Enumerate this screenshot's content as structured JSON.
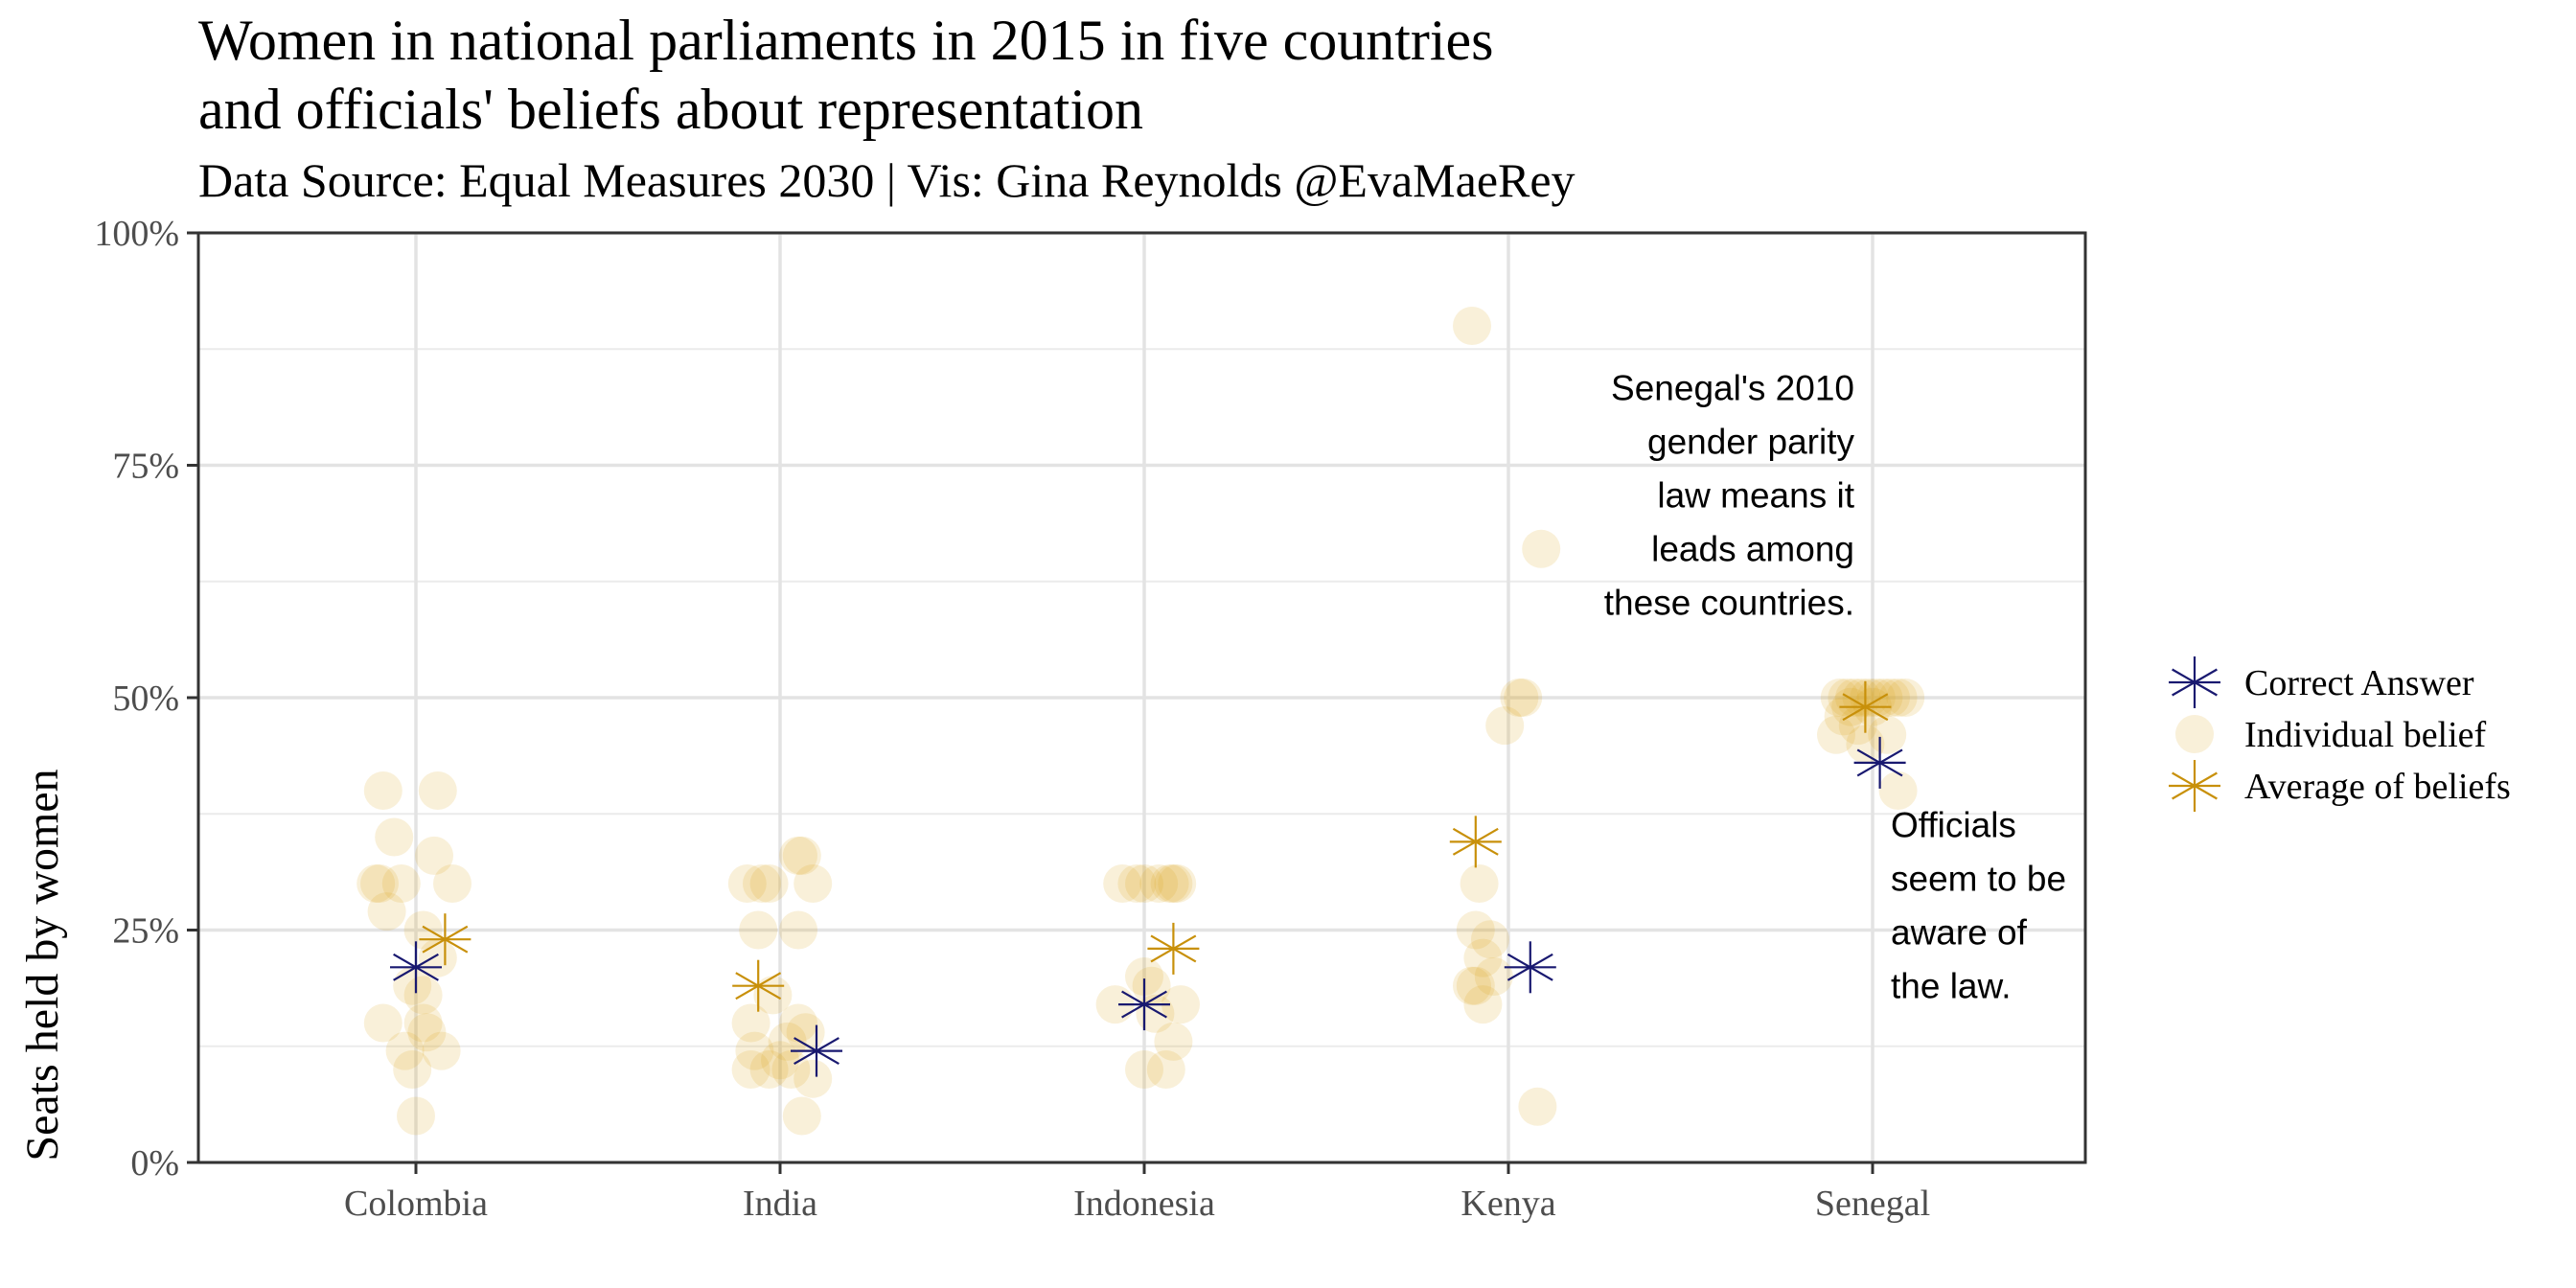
{
  "chart_data": {
    "type": "scatter",
    "title_lines": [
      "Women in national parliaments in 2015 in five countries",
      "and officials' beliefs about representation"
    ],
    "subtitle": "Data Source: Equal Measures 2030 | Vis: Gina Reynolds @EvaMaeRey",
    "ylabel": "Seats held by women",
    "xlabel": "",
    "ylim": [
      0,
      1
    ],
    "y_ticks": [
      {
        "value": 0,
        "label": "0%"
      },
      {
        "value": 0.25,
        "label": "25%"
      },
      {
        "value": 0.5,
        "label": "50%"
      },
      {
        "value": 0.75,
        "label": "75%"
      },
      {
        "value": 1,
        "label": "100%"
      }
    ],
    "grid": true,
    "legend_position": "right",
    "categories": [
      "Colombia",
      "India",
      "Indonesia",
      "Kenya",
      "Senegal"
    ],
    "legend": [
      {
        "key": "correct",
        "label": "Correct Answer",
        "color": "#191970"
      },
      {
        "key": "individual",
        "label": "Individual belief",
        "color": "#DAA520"
      },
      {
        "key": "average",
        "label": "Average of beliefs",
        "color": "#C8900A"
      }
    ],
    "correct_answers": [
      {
        "category": "Colombia",
        "value": 0.21,
        "jitter": 0.0
      },
      {
        "category": "India",
        "value": 0.12,
        "jitter": 0.1
      },
      {
        "category": "Indonesia",
        "value": 0.17,
        "jitter": 0.0
      },
      {
        "category": "Kenya",
        "value": 0.21,
        "jitter": 0.06
      },
      {
        "category": "Senegal",
        "value": 0.43,
        "jitter": 0.02
      }
    ],
    "average_beliefs": [
      {
        "category": "Colombia",
        "value": 0.24,
        "jitter": 0.08
      },
      {
        "category": "India",
        "value": 0.19,
        "jitter": -0.06
      },
      {
        "category": "Indonesia",
        "value": 0.23,
        "jitter": 0.08
      },
      {
        "category": "Kenya",
        "value": 0.345,
        "jitter": -0.09
      },
      {
        "category": "Senegal",
        "value": 0.49,
        "jitter": -0.02
      }
    ],
    "individual_beliefs": [
      {
        "category": "Colombia",
        "points": [
          {
            "value": 0.4,
            "jitter": -0.09
          },
          {
            "value": 0.4,
            "jitter": 0.06
          },
          {
            "value": 0.35,
            "jitter": -0.06
          },
          {
            "value": 0.33,
            "jitter": 0.05
          },
          {
            "value": 0.3,
            "jitter": -0.1
          },
          {
            "value": 0.3,
            "jitter": -0.11
          },
          {
            "value": 0.3,
            "jitter": -0.04
          },
          {
            "value": 0.3,
            "jitter": 0.1
          },
          {
            "value": 0.27,
            "jitter": -0.08
          },
          {
            "value": 0.25,
            "jitter": 0.02
          },
          {
            "value": 0.22,
            "jitter": 0.06
          },
          {
            "value": 0.19,
            "jitter": -0.01
          },
          {
            "value": 0.18,
            "jitter": 0.02
          },
          {
            "value": 0.15,
            "jitter": -0.09
          },
          {
            "value": 0.15,
            "jitter": 0.02
          },
          {
            "value": 0.14,
            "jitter": 0.03
          },
          {
            "value": 0.12,
            "jitter": -0.03
          },
          {
            "value": 0.12,
            "jitter": 0.07
          },
          {
            "value": 0.1,
            "jitter": -0.01
          },
          {
            "value": 0.05,
            "jitter": 0.0
          }
        ]
      },
      {
        "category": "India",
        "points": [
          {
            "value": 0.33,
            "jitter": 0.05
          },
          {
            "value": 0.33,
            "jitter": 0.06
          },
          {
            "value": 0.3,
            "jitter": -0.09
          },
          {
            "value": 0.3,
            "jitter": -0.05
          },
          {
            "value": 0.3,
            "jitter": -0.03
          },
          {
            "value": 0.3,
            "jitter": 0.09
          },
          {
            "value": 0.25,
            "jitter": -0.06
          },
          {
            "value": 0.25,
            "jitter": 0.05
          },
          {
            "value": 0.18,
            "jitter": -0.02
          },
          {
            "value": 0.15,
            "jitter": -0.08
          },
          {
            "value": 0.15,
            "jitter": 0.05
          },
          {
            "value": 0.14,
            "jitter": 0.07
          },
          {
            "value": 0.13,
            "jitter": 0.02
          },
          {
            "value": 0.12,
            "jitter": -0.07
          },
          {
            "value": 0.11,
            "jitter": 0.0
          },
          {
            "value": 0.1,
            "jitter": -0.08
          },
          {
            "value": 0.1,
            "jitter": -0.03
          },
          {
            "value": 0.1,
            "jitter": 0.03
          },
          {
            "value": 0.09,
            "jitter": 0.09
          },
          {
            "value": 0.05,
            "jitter": 0.06
          }
        ]
      },
      {
        "category": "Indonesia",
        "points": [
          {
            "value": 0.3,
            "jitter": -0.06
          },
          {
            "value": 0.3,
            "jitter": -0.02
          },
          {
            "value": 0.3,
            "jitter": 0.0
          },
          {
            "value": 0.3,
            "jitter": 0.04
          },
          {
            "value": 0.3,
            "jitter": 0.07
          },
          {
            "value": 0.3,
            "jitter": 0.08
          },
          {
            "value": 0.3,
            "jitter": 0.09
          },
          {
            "value": 0.2,
            "jitter": 0.0
          },
          {
            "value": 0.19,
            "jitter": 0.02
          },
          {
            "value": 0.17,
            "jitter": -0.08
          },
          {
            "value": 0.17,
            "jitter": 0.1
          },
          {
            "value": 0.16,
            "jitter": 0.03
          },
          {
            "value": 0.13,
            "jitter": 0.08
          },
          {
            "value": 0.1,
            "jitter": 0.0
          },
          {
            "value": 0.1,
            "jitter": 0.06
          }
        ]
      },
      {
        "category": "Kenya",
        "points": [
          {
            "value": 0.9,
            "jitter": -0.1
          },
          {
            "value": 0.66,
            "jitter": 0.09
          },
          {
            "value": 0.5,
            "jitter": 0.03
          },
          {
            "value": 0.5,
            "jitter": 0.04
          },
          {
            "value": 0.47,
            "jitter": -0.01
          },
          {
            "value": 0.3,
            "jitter": -0.08
          },
          {
            "value": 0.25,
            "jitter": -0.09
          },
          {
            "value": 0.24,
            "jitter": -0.05
          },
          {
            "value": 0.22,
            "jitter": -0.07
          },
          {
            "value": 0.2,
            "jitter": -0.04
          },
          {
            "value": 0.19,
            "jitter": -0.1
          },
          {
            "value": 0.19,
            "jitter": -0.09
          },
          {
            "value": 0.17,
            "jitter": -0.07
          },
          {
            "value": 0.06,
            "jitter": 0.08
          }
        ]
      },
      {
        "category": "Senegal",
        "points": [
          {
            "value": 0.5,
            "jitter": -0.09
          },
          {
            "value": 0.5,
            "jitter": -0.07
          },
          {
            "value": 0.5,
            "jitter": -0.05
          },
          {
            "value": 0.5,
            "jitter": -0.03
          },
          {
            "value": 0.5,
            "jitter": -0.01
          },
          {
            "value": 0.5,
            "jitter": 0.01
          },
          {
            "value": 0.5,
            "jitter": 0.03
          },
          {
            "value": 0.5,
            "jitter": 0.05
          },
          {
            "value": 0.5,
            "jitter": 0.07
          },
          {
            "value": 0.5,
            "jitter": 0.09
          },
          {
            "value": 0.49,
            "jitter": -0.06
          },
          {
            "value": 0.49,
            "jitter": 0.0
          },
          {
            "value": 0.48,
            "jitter": -0.08
          },
          {
            "value": 0.47,
            "jitter": -0.04
          },
          {
            "value": 0.46,
            "jitter": -0.1
          },
          {
            "value": 0.46,
            "jitter": 0.04
          },
          {
            "value": 0.45,
            "jitter": -0.02
          },
          {
            "value": 0.4,
            "jitter": 0.07
          }
        ]
      }
    ],
    "annotations": [
      {
        "category": "Kenya",
        "offset": 0.95,
        "value": 0.82,
        "align": "right",
        "lines": [
          "Senegal's 2010",
          "gender parity",
          "law means it",
          "leads among",
          "these countries."
        ]
      },
      {
        "category": "Senegal",
        "offset": 0.05,
        "value": 0.35,
        "align": "left",
        "lines": [
          "Officials",
          "seem to be",
          "aware of",
          "the law."
        ]
      }
    ]
  }
}
